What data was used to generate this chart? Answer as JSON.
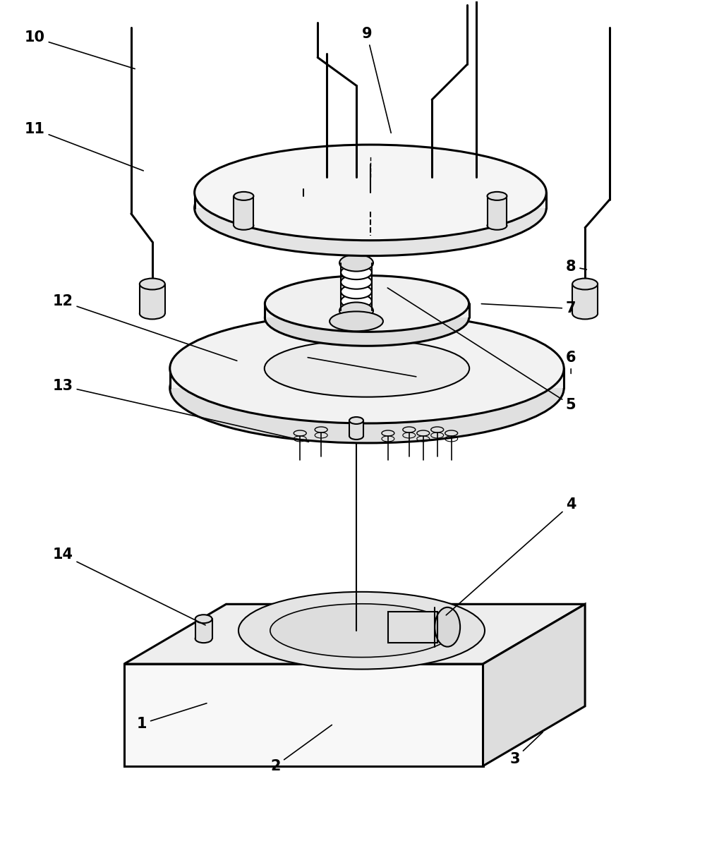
{
  "figure_width": 10.2,
  "figure_height": 11.92,
  "dpi": 100,
  "bg_color": "#ffffff",
  "line_color": "#000000",
  "lw": 1.5,
  "blw": 2.2
}
